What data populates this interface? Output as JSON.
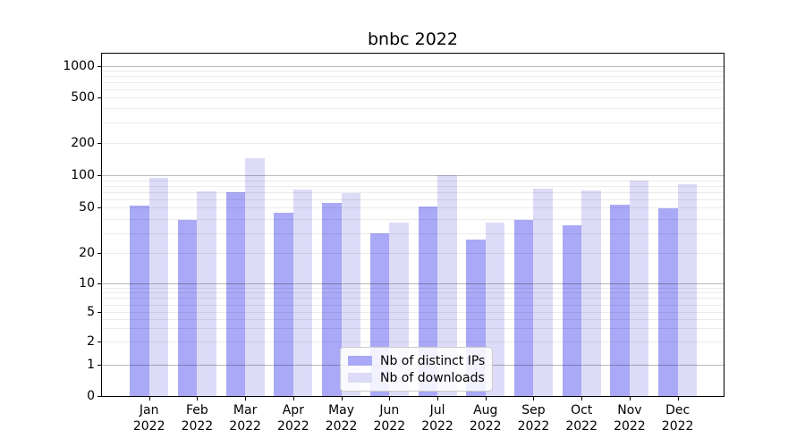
{
  "title": "bnbc 2022",
  "chart_data": {
    "type": "bar",
    "title": "bnbc 2022",
    "categories": [
      "Jan 2022",
      "Feb 2022",
      "Mar 2022",
      "Apr 2022",
      "May 2022",
      "Jun 2022",
      "Jul 2022",
      "Aug 2022",
      "Sep 2022",
      "Oct 2022",
      "Nov 2022",
      "Dec 2022"
    ],
    "series": [
      {
        "name": "Nb of distinct IPs",
        "color": "#a9a9f7",
        "values": [
          52,
          39,
          70,
          45,
          55,
          30,
          51,
          26,
          39,
          35,
          53,
          49
        ]
      },
      {
        "name": "Nb of downloads",
        "color": "#dcdcf8",
        "values": [
          94,
          71,
          145,
          73,
          68,
          37,
          100,
          37,
          75,
          72,
          90,
          82
        ]
      }
    ],
    "xlabel": "",
    "ylabel": "",
    "yscale": "symlog",
    "y_ticks": [
      0,
      1,
      2,
      5,
      10,
      20,
      50,
      100,
      200,
      500,
      1000
    ],
    "ylim": [
      0,
      1300
    ],
    "grid": true,
    "legend_position": "lower center"
  }
}
